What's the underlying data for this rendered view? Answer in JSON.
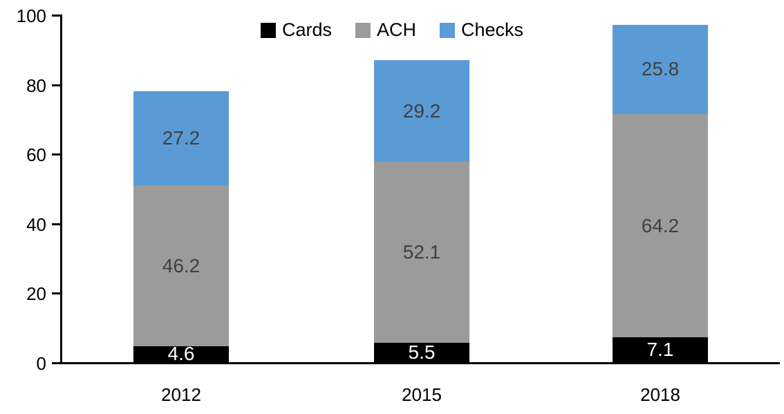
{
  "chart_data": {
    "type": "bar",
    "stacked": true,
    "title": "",
    "xlabel": "",
    "ylabel": "",
    "categories": [
      "2012",
      "2015",
      "2018"
    ],
    "series": [
      {
        "name": "Cards",
        "color": "#000000",
        "label_color": "#ffffff",
        "values": [
          4.6,
          5.5,
          7.1
        ]
      },
      {
        "name": "ACH",
        "color": "#9B9B9B",
        "label_color": "#404040",
        "values": [
          46.2,
          52.1,
          64.2
        ]
      },
      {
        "name": "Checks",
        "color": "#5B9BD5",
        "label_color": "#404040",
        "values": [
          27.2,
          29.2,
          25.8
        ]
      }
    ],
    "totals": [
      78.0,
      86.8,
      97.1
    ],
    "ylim": [
      0,
      100
    ],
    "yticks": [
      0,
      20,
      40,
      60,
      80,
      100
    ],
    "grid": false,
    "legend_position": "top-center",
    "legend_entries": [
      "Cards",
      "ACH",
      "Checks"
    ],
    "axis_color": "#000000",
    "background_color": "#ffffff",
    "data_labels_shown": true
  }
}
